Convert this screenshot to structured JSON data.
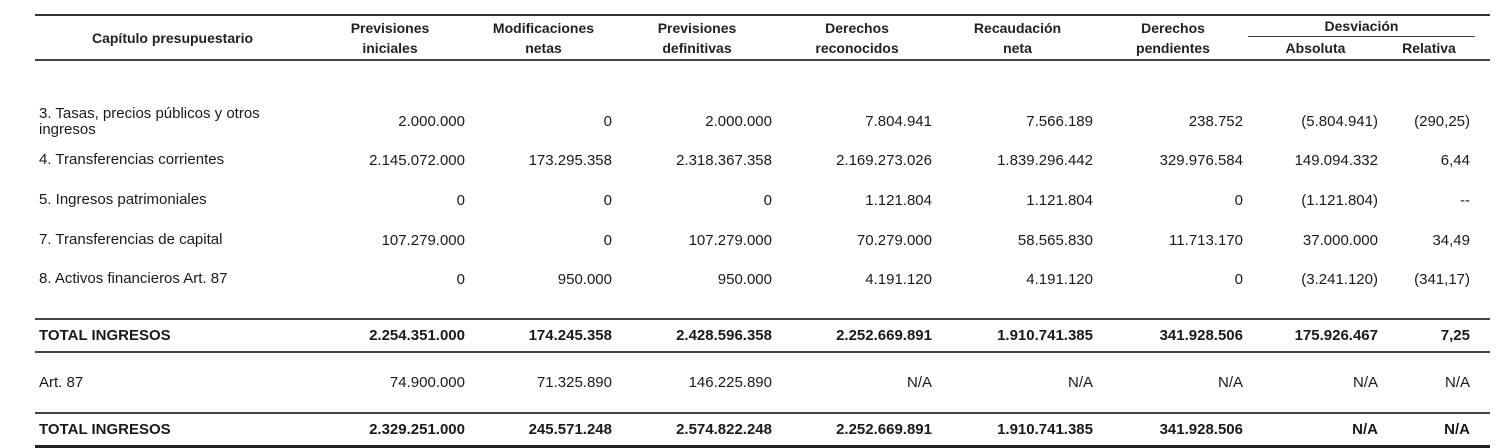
{
  "headers": {
    "capitulo": "Capítulo presupuestario",
    "previsiones_iniciales": [
      "Previsiones",
      "iniciales"
    ],
    "modificaciones_netas": [
      "Modificaciones",
      "netas"
    ],
    "previsiones_definitivas": [
      "Previsiones",
      "definitivas"
    ],
    "derechos_reconocidos": [
      "Derechos",
      "reconocidos"
    ],
    "recaudacion_neta": [
      "Recaudación",
      "neta"
    ],
    "derechos_pendientes": [
      "Derechos",
      "pendientes"
    ],
    "desviacion": "Desviación",
    "absoluta": "Absoluta",
    "relativa": "Relativa"
  },
  "rows": [
    {
      "label": "3. Tasas, precios públicos y otros ingresos",
      "values": [
        "2.000.000",
        "0",
        "2.000.000",
        "7.804.941",
        "7.566.189",
        "238.752",
        "(5.804.941)",
        "(290,25)"
      ]
    },
    {
      "label": "4. Transferencias  corrientes",
      "values": [
        "2.145.072.000",
        "173.295.358",
        "2.318.367.358",
        "2.169.273.026",
        "1.839.296.442",
        "329.976.584",
        "149.094.332",
        "6,44"
      ]
    },
    {
      "label": "5. Ingresos patrimoniales",
      "values": [
        "0",
        "0",
        "0",
        "1.121.804",
        "1.121.804",
        "0",
        "(1.121.804)",
        "--"
      ]
    },
    {
      "label": "7. Transferencias de capital",
      "values": [
        "107.279.000",
        "0",
        "107.279.000",
        "70.279.000",
        "58.565.830",
        "11.713.170",
        "37.000.000",
        "34,49"
      ]
    },
    {
      "label": "8. Activos financieros Art. 87",
      "values": [
        "0",
        "950.000",
        "950.000",
        "4.191.120",
        "4.191.120",
        "0",
        "(3.241.120)",
        "(341,17)"
      ]
    }
  ],
  "total1": {
    "label": "TOTAL INGRESOS",
    "values": [
      "2.254.351.000",
      "174.245.358",
      "2.428.596.358",
      "2.252.669.891",
      "1.910.741.385",
      "341.928.506",
      "175.926.467",
      "7,25"
    ]
  },
  "art87": {
    "label": "Art. 87",
    "values": [
      "74.900.000",
      "71.325.890",
      "146.225.890",
      "N/A",
      "N/A",
      "N/A",
      "N/A",
      "N/A"
    ]
  },
  "total2": {
    "label": "TOTAL INGRESOS",
    "values": [
      "2.329.251.000",
      "245.571.248",
      "2.574.822.248",
      "2.252.669.891",
      "1.910.741.385",
      "341.928.506",
      "N/A",
      "N/A"
    ]
  }
}
